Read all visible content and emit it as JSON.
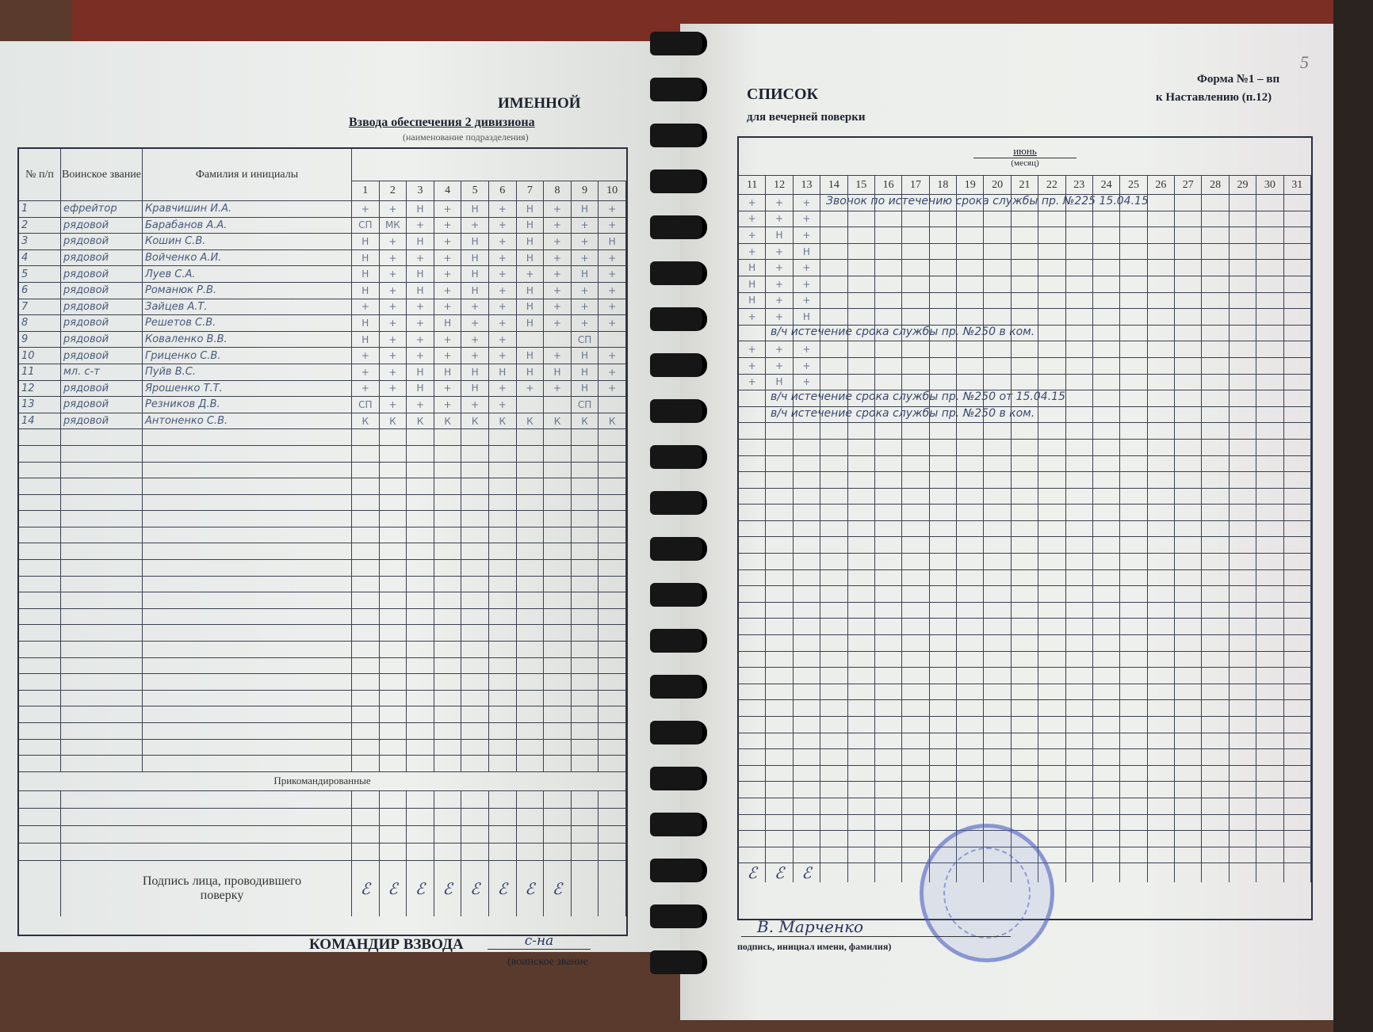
{
  "left_page": {
    "title": "ИМЕННОЙ",
    "unit": "Взвода обеспечения 2 дивизиона",
    "unit_caption": "(наименование подразделения)",
    "headers": {
      "num": "№ п/п",
      "rank": "Воинское звание",
      "name": "Фамилия и инициалы"
    },
    "days": [
      "1",
      "2",
      "3",
      "4",
      "5",
      "6",
      "7",
      "8",
      "9",
      "10"
    ],
    "rows": [
      {
        "num": "1",
        "rank": "ефрейтор",
        "name": "Кравчишин И.А.",
        "marks": [
          "+",
          "+",
          "Н",
          "+",
          "Н",
          "+",
          "Н",
          "+",
          "Н",
          "+"
        ]
      },
      {
        "num": "2",
        "rank": "рядовой",
        "name": "Барабанов А.А.",
        "marks": [
          "СП",
          "МК",
          "+",
          "+",
          "+",
          "+",
          "Н",
          "+",
          "+",
          "+"
        ]
      },
      {
        "num": "3",
        "rank": "рядовой",
        "name": "Кошин С.В.",
        "marks": [
          "Н",
          "+",
          "Н",
          "+",
          "Н",
          "+",
          "Н",
          "+",
          "+",
          "Н"
        ]
      },
      {
        "num": "4",
        "rank": "рядовой",
        "name": "Войченко А.И.",
        "marks": [
          "Н",
          "+",
          "+",
          "+",
          "Н",
          "+",
          "Н",
          "+",
          "+",
          "+"
        ]
      },
      {
        "num": "5",
        "rank": "рядовой",
        "name": "Луев С.А.",
        "marks": [
          "Н",
          "+",
          "Н",
          "+",
          "Н",
          "+",
          "+",
          "+",
          "Н",
          "+"
        ]
      },
      {
        "num": "6",
        "rank": "рядовой",
        "name": "Романюк Р.В.",
        "marks": [
          "Н",
          "+",
          "Н",
          "+",
          "Н",
          "+",
          "Н",
          "+",
          "+",
          "+"
        ]
      },
      {
        "num": "7",
        "rank": "рядовой",
        "name": "Зайцев А.Т.",
        "marks": [
          "+",
          "+",
          "+",
          "+",
          "+",
          "+",
          "Н",
          "+",
          "+",
          "+"
        ]
      },
      {
        "num": "8",
        "rank": "рядовой",
        "name": "Решетов С.В.",
        "marks": [
          "Н",
          "+",
          "+",
          "Н",
          "+",
          "+",
          "Н",
          "+",
          "+",
          "+"
        ]
      },
      {
        "num": "9",
        "rank": "рядовой",
        "name": "Коваленко В.В.",
        "marks": [
          "Н",
          "+",
          "+",
          "+",
          "+",
          "+",
          "",
          "",
          "СП",
          ""
        ]
      },
      {
        "num": "10",
        "rank": "рядовой",
        "name": "Гриценко С.В.",
        "marks": [
          "+",
          "+",
          "+",
          "+",
          "+",
          "+",
          "Н",
          "+",
          "Н",
          "+"
        ]
      },
      {
        "num": "11",
        "rank": "мл. с-т",
        "name": "Пуйв В.С.",
        "marks": [
          "+",
          "+",
          "Н",
          "Н",
          "Н",
          "Н",
          "Н",
          "Н",
          "Н",
          "+"
        ]
      },
      {
        "num": "12",
        "rank": "рядовой",
        "name": "Ярошенко Т.Т.",
        "marks": [
          "+",
          "+",
          "Н",
          "+",
          "Н",
          "+",
          "+",
          "+",
          "Н",
          "+"
        ]
      },
      {
        "num": "13",
        "rank": "рядовой",
        "name": "Резников Д.В.",
        "marks": [
          "СП",
          "+",
          "+",
          "+",
          "+",
          "+",
          "",
          "",
          "СП",
          ""
        ]
      },
      {
        "num": "14",
        "rank": "рядовой",
        "name": "Антоненко С.В.",
        "marks": [
          "К",
          "К",
          "К",
          "К",
          "К",
          "К",
          "К",
          "К",
          "К",
          "К"
        ]
      }
    ],
    "attached_label": "Прикомандированные",
    "signature_label": "Подпись лица, проводившего поверку",
    "commander_label": "КОМАНДИР ВЗВОДА",
    "commander_rank": "с-на",
    "commander_caption": "(воинское звание"
  },
  "right_page": {
    "title": "СПИСОК",
    "subtitle": "для вечерней поверки",
    "form_line1": "Форма №1 – вп",
    "form_line2": "к Наставлению (п.12)",
    "page_number": "5",
    "month": "июнь",
    "month_caption": "(месяц)",
    "days": [
      "11",
      "12",
      "13",
      "14",
      "15",
      "16",
      "17",
      "18",
      "19",
      "20",
      "21",
      "22",
      "23",
      "24",
      "25",
      "26",
      "27",
      "28",
      "29",
      "30",
      "31"
    ],
    "rows": [
      [
        "+",
        "+",
        "+"
      ],
      [
        "+",
        "+",
        "+"
      ],
      [
        "+",
        "Н",
        "+"
      ],
      [
        "+",
        "+",
        "Н"
      ],
      [
        "Н",
        "+",
        "+"
      ],
      [
        "Н",
        "+",
        "+"
      ],
      [
        "Н",
        "+",
        "+"
      ],
      [
        "+",
        "+",
        "Н"
      ],
      [
        "",
        "",
        ""
      ],
      [
        "+",
        "+",
        "+"
      ],
      [
        "+",
        "+",
        "+"
      ],
      [
        "+",
        "Н",
        "+"
      ],
      [
        "",
        "",
        ""
      ],
      [
        "",
        "",
        ""
      ]
    ],
    "notes": [
      {
        "row": 1,
        "text": "Звонок по истечению срока службы пр. №225 15.04.15"
      },
      {
        "row": 9,
        "text": "в/ч истечение срока службы пр. №250 в ком."
      },
      {
        "row": 13,
        "text": "в/ч истечение срока службы пр. №250 от 15.04.15"
      },
      {
        "row": 14,
        "text": "в/ч истечение срока службы пр. №250 в ком."
      }
    ],
    "signer": "В. Марченко",
    "signer_caption": "подпись, инициал имени, фамилия)"
  },
  "colors": {
    "paper": "#e9ecea",
    "ink": "#1d2330",
    "handwriting": "#4a5a7a",
    "stamp": "#4a5abe"
  }
}
